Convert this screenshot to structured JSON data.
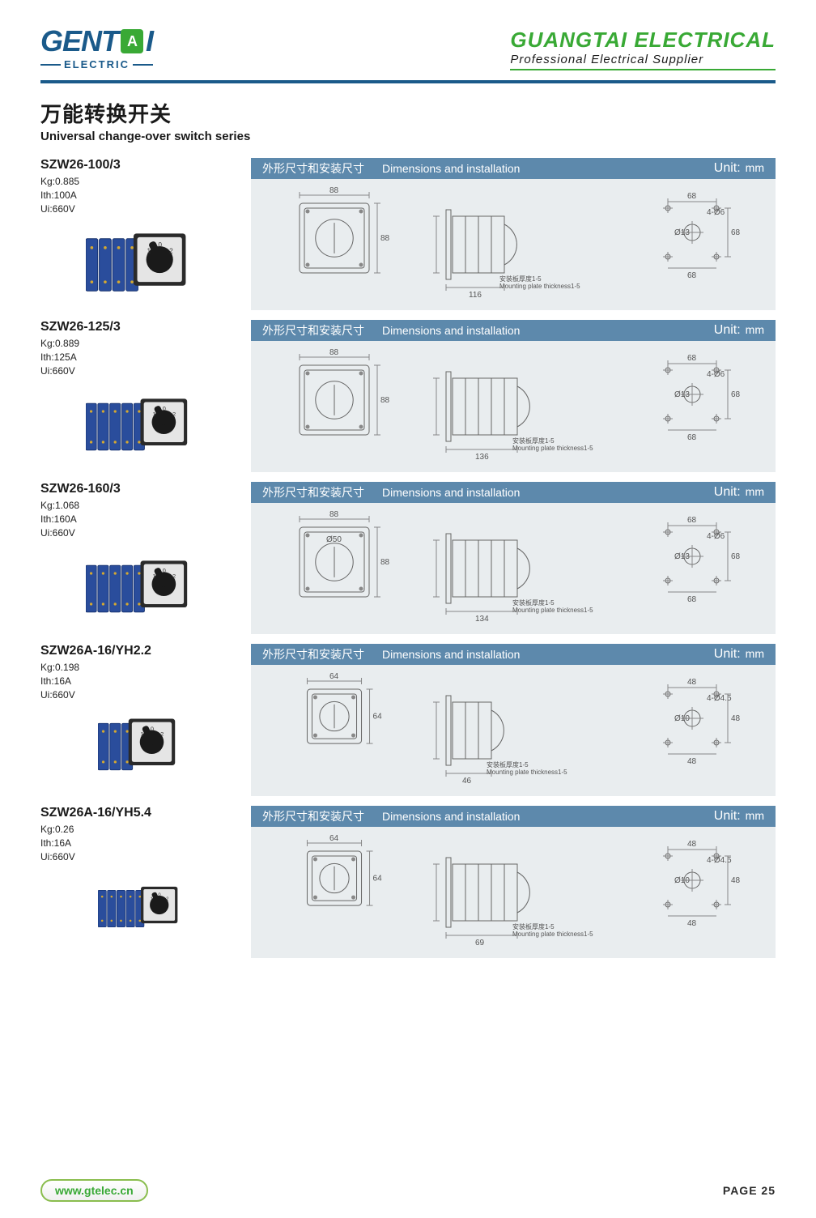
{
  "header": {
    "logo_left": "GENT",
    "logo_right": "I",
    "logo_mid": "A",
    "logo_sub": "ELECTRIC",
    "company": "GUANGTAI ELECTRICAL",
    "tagline": "Professional Electrical Supplier"
  },
  "series": {
    "cn": "万能转换开关",
    "en": "Universal change-over switch series"
  },
  "colors": {
    "header_bar": "#5d89ac",
    "diagram_bg": "#e9edef",
    "brand_blue": "#1a5a8a",
    "brand_green": "#39a935",
    "switch_body": "#2a4d9c",
    "switch_face": "#e5e5e5",
    "knob": "#1a1a1a"
  },
  "dim_header": {
    "cn": "外形尺寸和安装尺寸",
    "en": "Dimensions and installation",
    "unit_label": "Unit:",
    "unit_value": "mm"
  },
  "products": [
    {
      "model": "SZW26-100/3",
      "kg": "Kg:0.885",
      "ith": "Ith:100A",
      "ui": "Ui:660V",
      "face_w": "88",
      "face_h": "88",
      "body_h": "84",
      "body_w": "116",
      "hole_w": "68",
      "hole_h": "68",
      "bolt": "4-Ø6",
      "hole": "Ø13",
      "diam": "",
      "sections": 4,
      "front_scale": 1.0,
      "mount_cn": "安装板厚度1-5",
      "mount_en": "Mounting plate thickness1-5"
    },
    {
      "model": "SZW26-125/3",
      "kg": "Kg:0.889",
      "ith": "Ith:125A",
      "ui": "Ui:660V",
      "face_w": "88",
      "face_h": "88",
      "body_h": "84",
      "body_w": "136",
      "hole_w": "68",
      "hole_h": "68",
      "bolt": "4-Ø6",
      "hole": "Ø13",
      "diam": "",
      "sections": 5,
      "front_scale": 1.0,
      "mount_cn": "安装板厚度1-5",
      "mount_en": "Mounting plate thickness1-5"
    },
    {
      "model": "SZW26-160/3",
      "kg": "Kg:1.068",
      "ith": "Ith:160A",
      "ui": "Ui:660V",
      "face_w": "88",
      "face_h": "88",
      "body_h": "88.5",
      "body_w": "134",
      "hole_w": "68",
      "hole_h": "68",
      "bolt": "4-Ø6",
      "hole": "Ø13",
      "diam": "Ø50",
      "sections": 5,
      "front_scale": 1.0,
      "mount_cn": "安装板厚度1-5",
      "mount_en": "Mounting plate thickness1-5"
    },
    {
      "model": "SZW26A-16/YH2.2",
      "kg": "Kg:0.198",
      "ith": "Ith:16A",
      "ui": "Ui:660V",
      "face_w": "64",
      "face_h": "64",
      "body_h": "50",
      "body_w": "46",
      "hole_w": "48",
      "hole_h": "48",
      "bolt": "4-Ø4.5",
      "hole": "Ø10",
      "diam": "",
      "sections": 3,
      "front_scale": 0.78,
      "mount_cn": "安装板厚度1-5",
      "mount_en": "Mounting plate thickness1-5"
    },
    {
      "model": "SZW26A-16/YH5.4",
      "kg": "Kg:0.26",
      "ith": "Ith:16A",
      "ui": "Ui:660V",
      "face_w": "64",
      "face_h": "64",
      "body_h": "50",
      "body_w": "69",
      "hole_w": "48",
      "hole_h": "48",
      "bolt": "4-Ø4.5",
      "hole": "Ø10",
      "diam": "",
      "sections": 5,
      "front_scale": 0.78,
      "mount_cn": "安装板厚度1-5",
      "mount_en": "Mounting plate thickness1-5"
    }
  ],
  "footer": {
    "website": "www.gtelec.cn",
    "page": "PAGE 25"
  }
}
